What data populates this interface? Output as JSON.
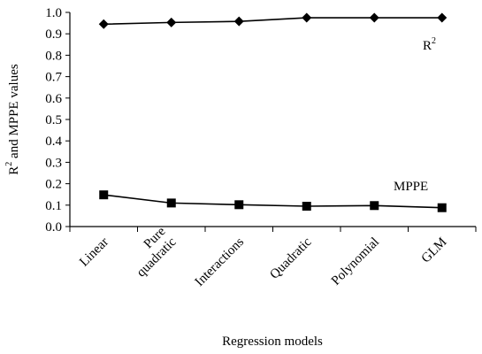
{
  "chart_data": {
    "type": "line",
    "categories": [
      "Linear",
      "Pure quadratic",
      "Interactions",
      "Quadratic",
      "Polynomial",
      "GLM"
    ],
    "series": [
      {
        "name": "R",
        "values": [
          0.945,
          0.953,
          0.958,
          0.975,
          0.975,
          0.975
        ],
        "marker": "diamond"
      },
      {
        "name": "MPPE",
        "values": [
          0.148,
          0.11,
          0.102,
          0.095,
          0.098,
          0.088
        ],
        "marker": "square"
      }
    ],
    "series_superscripts": [
      "2",
      ""
    ],
    "xlabel": "Regression models",
    "ylabel": "R",
    "ylabel_sup": "2",
    "ylabel_rest": " and MPPE values",
    "yticks": [
      "0.0",
      "0.1",
      "0.2",
      "0.3",
      "0.4",
      "0.5",
      "0.6",
      "0.7",
      "0.8",
      "0.9",
      "1.0"
    ],
    "ylim": [
      0,
      1.0
    ],
    "grid": false,
    "colors": {
      "line": "#000000",
      "marker": "#000000"
    }
  }
}
